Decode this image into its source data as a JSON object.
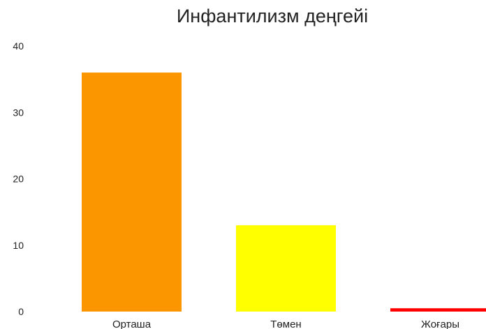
{
  "chart_data": {
    "type": "bar",
    "title": "Инфантилизм деңгейі",
    "categories": [
      "Орташа",
      "Төмен",
      "Жоғары"
    ],
    "values": [
      36,
      13,
      0.5
    ],
    "colors": [
      "#fb9600",
      "#ffff00",
      "#ff0000"
    ],
    "ylim": [
      0,
      40
    ],
    "yticks": [
      "0",
      "10",
      "20",
      "30",
      "40"
    ],
    "xlabel": "",
    "ylabel": "",
    "grid": false,
    "legend": "none"
  }
}
